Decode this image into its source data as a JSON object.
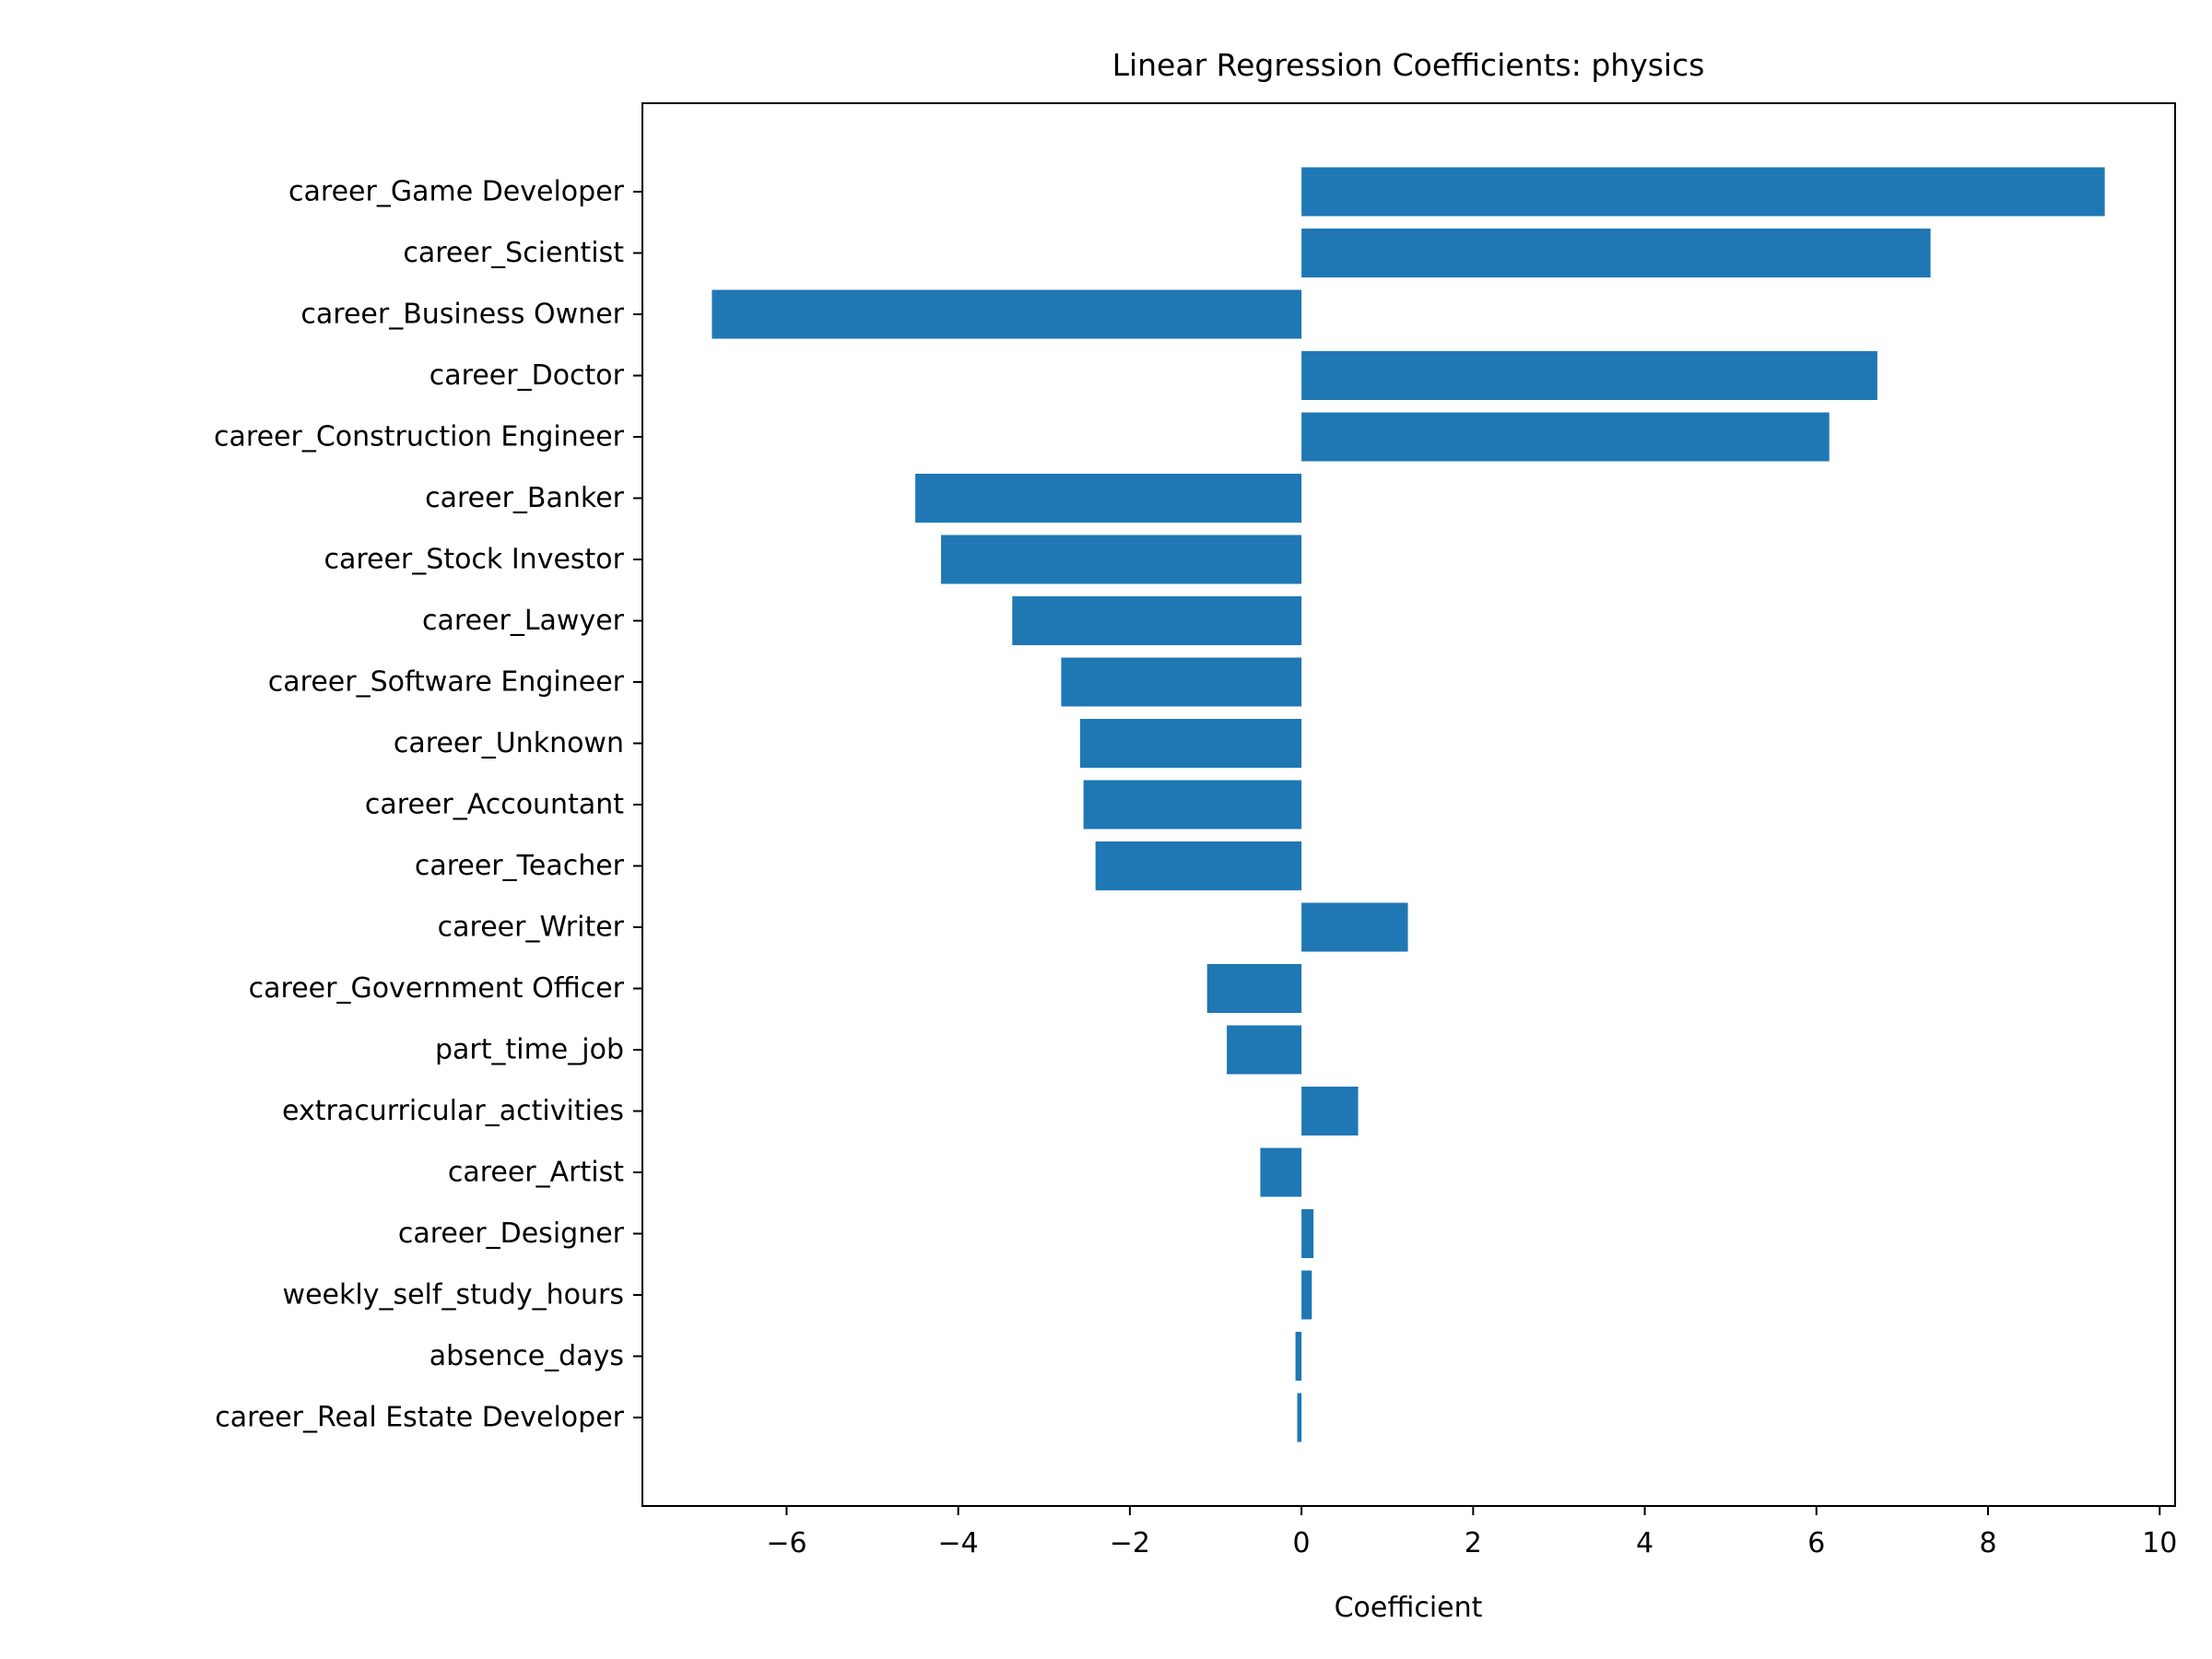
{
  "chart_data": {
    "type": "bar",
    "orientation": "horizontal",
    "title": "Linear Regression Coefficients: physics",
    "xlabel": "Coefficient",
    "ylabel": "",
    "categories": [
      "career_Game Developer",
      "career_Scientist",
      "career_Business Owner",
      "career_Doctor",
      "career_Construction Engineer",
      "career_Banker",
      "career_Stock Investor",
      "career_Lawyer",
      "career_Software Engineer",
      "career_Unknown",
      "career_Accountant",
      "career_Teacher",
      "career_Writer",
      "career_Government Officer",
      "part_time_job",
      "extracurricular_activities",
      "career_Artist",
      "career_Designer",
      "weekly_self_study_hours",
      "absence_days",
      "career_Real Estate Developer"
    ],
    "values": [
      9.36,
      7.33,
      -6.87,
      6.71,
      6.15,
      -4.5,
      -4.2,
      -3.37,
      -2.8,
      -2.58,
      -2.54,
      -2.4,
      1.24,
      -1.1,
      -0.87,
      0.66,
      -0.48,
      0.14,
      0.12,
      -0.07,
      -0.05
    ],
    "xlim": [
      -7.68,
      10.18
    ],
    "xticks": [
      -6,
      -4,
      -2,
      0,
      2,
      4,
      6,
      8,
      10
    ],
    "xtick_labels": [
      "−6",
      "−4",
      "−2",
      "0",
      "2",
      "4",
      "6",
      "8",
      "10"
    ],
    "grid": false,
    "bar_color": "#1f77b4"
  }
}
